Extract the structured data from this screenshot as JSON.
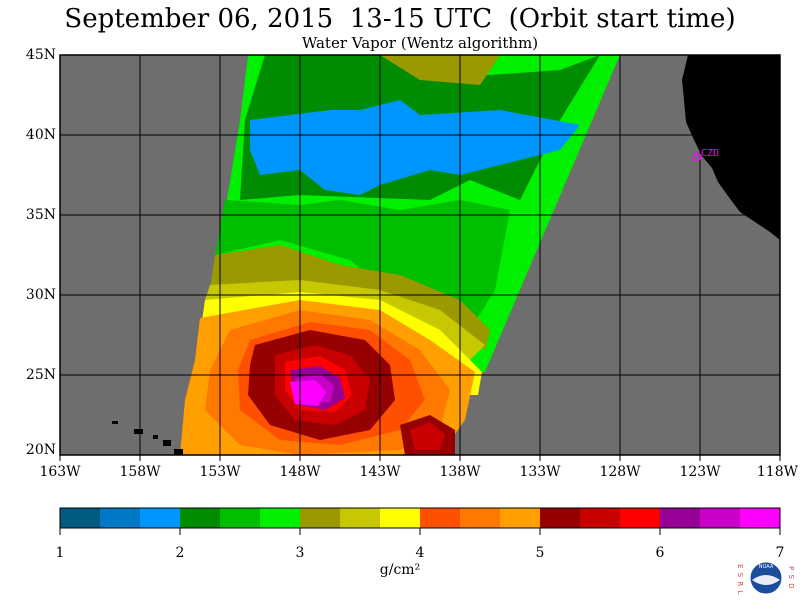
{
  "title": "September 06, 2015  13-15 UTC  (Orbit start time)",
  "subtitle": "Water Vapor (Wentz algorithm)",
  "lat_labels": [
    "45N",
    "40N",
    "35N",
    "30N",
    "25N",
    "20N"
  ],
  "lon_labels": [
    "163W",
    "158W",
    "153W",
    "148W",
    "143W",
    "138W",
    "133W",
    "128W",
    "123W",
    "118W"
  ],
  "station_label": "CZD",
  "colorbar": {
    "ticks": [
      "1",
      "2",
      "3",
      "4",
      "5",
      "6",
      "7"
    ],
    "unit": "g/cm²",
    "colors": [
      "#005a82",
      "#0078c8",
      "#0096ff",
      "#008c00",
      "#00be00",
      "#00f000",
      "#9a9a00",
      "#c8c800",
      "#ffff00",
      "#ff5000",
      "#ff7800",
      "#ffa000",
      "#960000",
      "#c80000",
      "#ff0000",
      "#960096",
      "#c800c8",
      "#ff00ff"
    ]
  },
  "colors": {
    "land_gray": "#6e6e6e",
    "coast_black": "#000000",
    "grid": "#000000",
    "station_magenta": "#ff00ff"
  },
  "logo": {
    "left_letters": "E S R L",
    "right_letters": "P S D",
    "center_text": "NOAA"
  }
}
